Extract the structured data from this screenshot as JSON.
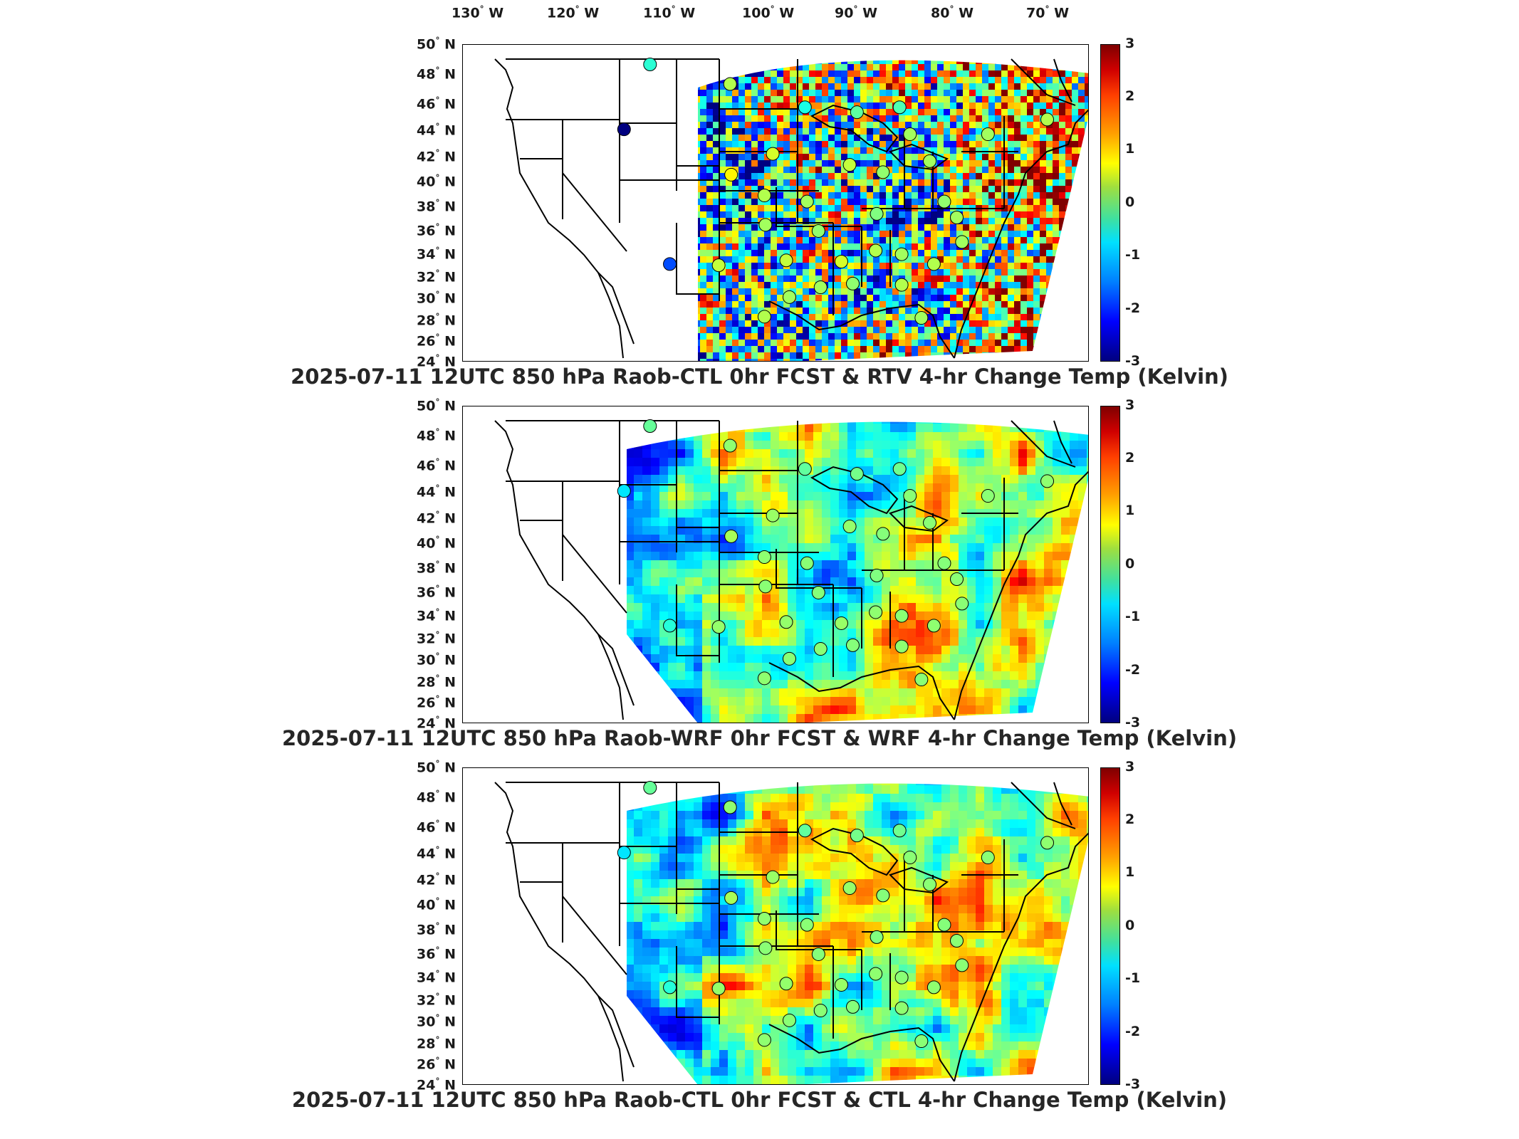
{
  "lon_labels": [
    "130",
    "120",
    "110",
    "100",
    "90",
    "80",
    "70"
  ],
  "lon_suffix": "W",
  "lat_labels": [
    "50",
    "48",
    "46",
    "44",
    "42",
    "40",
    "38",
    "36",
    "34",
    "32",
    "30",
    "28",
    "26",
    "24"
  ],
  "lat_suffix": "N",
  "degree_symbol": "°",
  "colorbar": {
    "range": [
      -3,
      3
    ],
    "ticks": [
      "3",
      "2",
      "1",
      "0",
      "-1",
      "-2",
      "-3"
    ],
    "colormap": "jet"
  },
  "panels": [
    {
      "title": "2025-07-11 12UTC 850 hPa Raob-CTL 0hr FCST & RTV 4-hr Change Temp (Kelvin)",
      "field_style": "speckled"
    },
    {
      "title": "2025-07-11 12UTC 850 hPa Raob-WRF 0hr FCST & WRF 4-hr Change Temp (Kelvin)",
      "field_style": "smooth"
    },
    {
      "title": "2025-07-11 12UTC 850 hPa Raob-CTL 0hr FCST & CTL 4-hr Change Temp (Kelvin)",
      "field_style": "smooth"
    }
  ],
  "raob_sites_lonlat": [
    [
      -108.5,
      48.4
    ],
    [
      -111.0,
      43.1
    ],
    [
      -100.8,
      46.8
    ],
    [
      -93.6,
      44.9
    ],
    [
      -88.6,
      44.5
    ],
    [
      -84.5,
      44.9
    ],
    [
      -83.5,
      42.7
    ],
    [
      -76.0,
      42.7
    ],
    [
      -89.3,
      40.2
    ],
    [
      -86.1,
      39.6
    ],
    [
      -81.6,
      40.5
    ],
    [
      -96.7,
      41.1
    ],
    [
      -100.7,
      39.4
    ],
    [
      -97.5,
      37.7
    ],
    [
      -93.4,
      37.2
    ],
    [
      -97.4,
      35.3
    ],
    [
      -92.3,
      34.8
    ],
    [
      -86.7,
      36.2
    ],
    [
      -80.2,
      37.2
    ],
    [
      -79.0,
      35.9
    ],
    [
      -78.5,
      33.9
    ],
    [
      -86.8,
      33.2
    ],
    [
      -84.3,
      32.9
    ],
    [
      -81.2,
      32.1
    ],
    [
      -90.1,
      32.3
    ],
    [
      -95.4,
      32.4
    ],
    [
      -101.9,
      32.0
    ],
    [
      -106.6,
      32.1
    ],
    [
      -97.5,
      27.8
    ],
    [
      -82.4,
      27.7
    ],
    [
      -84.3,
      30.4
    ],
    [
      -89.0,
      30.5
    ],
    [
      -92.1,
      30.2
    ],
    [
      -95.1,
      29.4
    ],
    [
      -70.3,
      43.9
    ]
  ],
  "raob_values_panel1": [
    -0.5,
    -3.0,
    0.3,
    -0.6,
    -0.2,
    -0.3,
    0.2,
    0.2,
    0.4,
    0.1,
    0.2,
    0.5,
    0.8,
    0.3,
    0.2,
    0.2,
    0.1,
    0.0,
    0.1,
    0.2,
    0.2,
    0.3,
    0.2,
    0.3,
    0.5,
    0.4,
    0.4,
    -1.8,
    0.3,
    0.2,
    0.3,
    0.1,
    0.2,
    0.2,
    0.3
  ]
}
